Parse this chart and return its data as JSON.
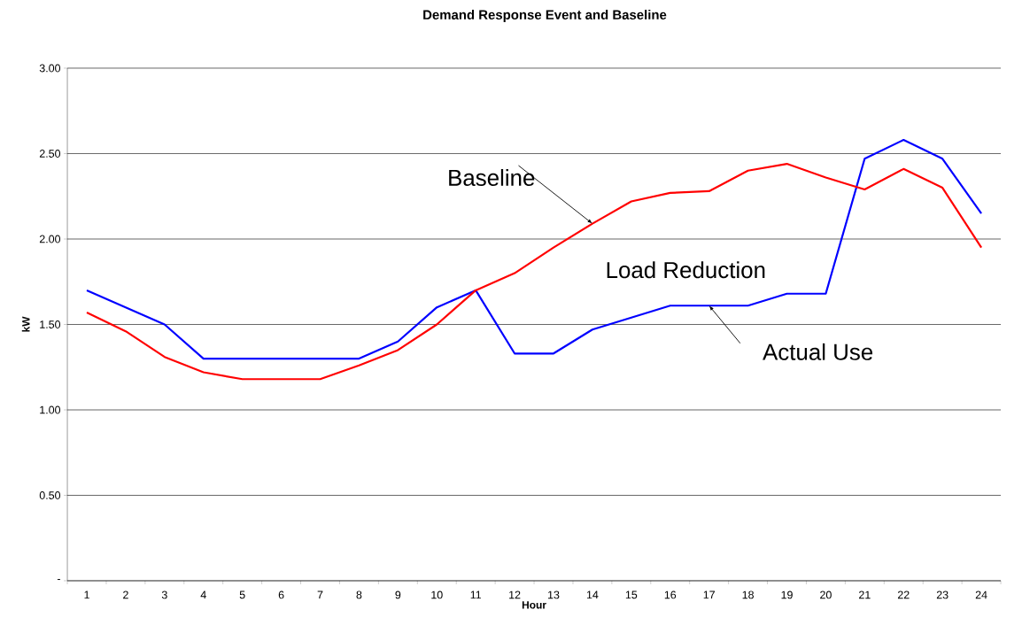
{
  "chart_data": {
    "type": "line",
    "title": "Demand Response Event and Baseline",
    "xlabel": "Hour",
    "ylabel": "kW",
    "categories": [
      "1",
      "2",
      "3",
      "4",
      "5",
      "6",
      "7",
      "8",
      "9",
      "10",
      "11",
      "12",
      "13",
      "14",
      "15",
      "16",
      "17",
      "18",
      "19",
      "20",
      "21",
      "22",
      "23",
      "24"
    ],
    "series": [
      {
        "color": "#0000ff",
        "values": [
          1.7,
          1.6,
          1.5,
          1.3,
          1.3,
          1.3,
          1.3,
          1.3,
          1.4,
          1.6,
          1.7,
          1.33,
          1.33,
          1.47,
          1.54,
          1.61,
          1.61,
          1.61,
          1.68,
          1.68,
          2.47,
          2.58,
          2.47,
          2.15
        ]
      },
      {
        "color": "#ff0000",
        "values": [
          1.57,
          1.46,
          1.31,
          1.22,
          1.18,
          1.18,
          1.18,
          1.26,
          1.35,
          1.5,
          1.7,
          1.8,
          1.95,
          2.09,
          2.22,
          2.27,
          2.28,
          2.4,
          2.44,
          2.36,
          2.29,
          2.41,
          2.3,
          1.95
        ]
      }
    ],
    "ylim": [
      0,
      3
    ],
    "yticks": [
      {
        "value": 0,
        "label": "-"
      },
      {
        "value": 0.5,
        "label": "0.50"
      },
      {
        "value": 1,
        "label": "1.00"
      },
      {
        "value": 1.5,
        "label": "1.50"
      },
      {
        "value": 2,
        "label": "2.00"
      },
      {
        "value": 2.5,
        "label": "2.50"
      },
      {
        "value": 3,
        "label": "3.00"
      }
    ],
    "grid": "y",
    "line_style": "solid",
    "annotations": [
      {
        "text": "Baseline",
        "x": "14",
        "y": 2.09
      },
      "Load Reduction",
      {
        "text": "Actual Use",
        "x": "17",
        "y": 1.61
      }
    ]
  }
}
